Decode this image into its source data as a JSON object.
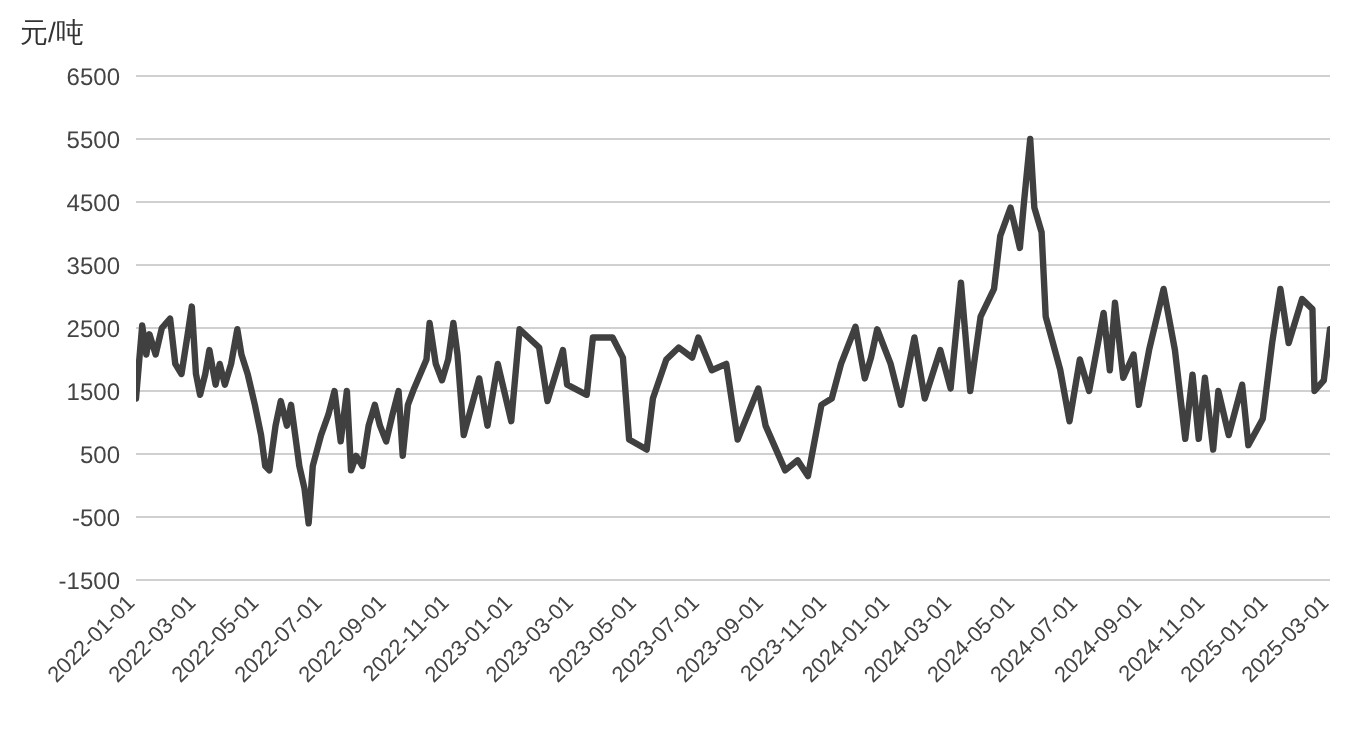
{
  "chart_data": {
    "type": "line",
    "ylabel": "元/吨",
    "x": [
      "2022-01-01",
      "2022-01-03",
      "2022-01-07",
      "2022-01-11",
      "2022-01-14",
      "2022-01-20",
      "2022-01-26",
      "2022-02-03",
      "2022-02-08",
      "2022-02-14",
      "2022-02-20",
      "2022-02-24",
      "2022-02-28",
      "2022-03-04",
      "2022-03-09",
      "2022-03-13",
      "2022-03-19",
      "2022-03-23",
      "2022-03-28",
      "2022-04-03",
      "2022-04-09",
      "2022-04-13",
      "2022-04-19",
      "2022-04-26",
      "2022-05-02",
      "2022-05-06",
      "2022-05-10",
      "2022-05-16",
      "2022-05-21",
      "2022-05-27",
      "2022-05-31",
      "2022-06-04",
      "2022-06-08",
      "2022-06-13",
      "2022-06-17",
      "2022-06-21",
      "2022-06-29",
      "2022-07-06",
      "2022-07-12",
      "2022-07-18",
      "2022-07-24",
      "2022-07-28",
      "2022-08-02",
      "2022-08-08",
      "2022-08-14",
      "2022-08-20",
      "2022-08-25",
      "2022-08-31",
      "2022-09-06",
      "2022-09-12",
      "2022-09-16",
      "2022-09-21",
      "2022-09-27",
      "2022-10-03",
      "2022-10-09",
      "2022-10-12",
      "2022-10-18",
      "2022-10-24",
      "2022-10-30",
      "2022-11-04",
      "2022-11-08",
      "2022-11-14",
      "2022-11-29",
      "2022-12-07",
      "2022-12-17",
      "2022-12-30",
      "2023-01-07",
      "2023-01-26",
      "2023-02-03",
      "2023-02-18",
      "2023-02-22",
      "2023-03-13",
      "2023-03-19",
      "2023-04-07",
      "2023-04-17",
      "2023-04-23",
      "2023-05-10",
      "2023-05-16",
      "2023-05-29",
      "2023-06-10",
      "2023-06-23",
      "2023-06-29",
      "2023-07-12",
      "2023-07-26",
      "2023-08-06",
      "2023-08-26",
      "2023-09-02",
      "2023-09-21",
      "2023-10-03",
      "2023-10-13",
      "2023-10-26",
      "2023-11-05",
      "2023-11-14",
      "2023-11-28",
      "2023-12-07",
      "2023-12-13",
      "2023-12-19",
      "2024-01-01",
      "2024-01-11",
      "2024-01-24",
      "2024-02-03",
      "2024-02-18",
      "2024-02-28",
      "2024-03-09",
      "2024-03-18",
      "2024-03-28",
      "2024-04-10",
      "2024-04-16",
      "2024-04-26",
      "2024-05-05",
      "2024-05-09",
      "2024-05-15",
      "2024-05-19",
      "2024-05-26",
      "2024-05-30",
      "2024-06-13",
      "2024-06-22",
      "2024-07-02",
      "2024-07-11",
      "2024-07-25",
      "2024-07-31",
      "2024-08-05",
      "2024-08-13",
      "2024-08-23",
      "2024-08-28",
      "2024-09-07",
      "2024-09-21",
      "2024-10-02",
      "2024-10-12",
      "2024-10-19",
      "2024-10-25",
      "2024-10-31",
      "2024-11-08",
      "2024-11-13",
      "2024-11-23",
      "2024-12-06",
      "2024-12-12",
      "2024-12-26",
      "2025-01-04",
      "2025-01-12",
      "2025-01-20",
      "2025-02-02",
      "2025-02-12",
      "2025-02-14",
      "2025-02-23",
      "2025-03-01"
    ],
    "series": [
      {
        "color": "#404040",
        "values": [
          1380,
          1770,
          2540,
          2080,
          2400,
          2080,
          2500,
          2650,
          1930,
          1770,
          2400,
          2840,
          1770,
          1440,
          1770,
          2150,
          1600,
          1930,
          1600,
          1930,
          2480,
          2080,
          1770,
          1280,
          800,
          310,
          240,
          950,
          1340,
          950,
          1280,
          800,
          310,
          -50,
          -600,
          310,
          800,
          1120,
          1500,
          700,
          1500,
          240,
          470,
          310,
          950,
          1280,
          950,
          700,
          1120,
          1500,
          470,
          1280,
          1540,
          1770,
          2000,
          2580,
          1930,
          1670,
          2000,
          2580,
          2080,
          800,
          1700,
          950,
          1930,
          1020,
          2480,
          2190,
          1340,
          2150,
          1600,
          1440,
          2350,
          2350,
          2030,
          730,
          570,
          1380,
          2000,
          2190,
          2030,
          2350,
          1830,
          1930,
          730,
          1540,
          950,
          240,
          400,
          150,
          1280,
          1380,
          1930,
          2520,
          1700,
          2030,
          2480,
          1930,
          1280,
          2350,
          1380,
          2150,
          1540,
          3220,
          1500,
          2680,
          3120,
          3960,
          4410,
          3770,
          4500,
          5500,
          4410,
          4020,
          2680,
          1840,
          1020,
          2000,
          1500,
          2740,
          1830,
          2900,
          1710,
          2080,
          1280,
          2150,
          3120,
          2150,
          740,
          1760,
          740,
          1710,
          570,
          1500,
          800,
          1600,
          640,
          1060,
          2260,
          3120,
          2260,
          2960,
          2800,
          1500,
          1670,
          2480
        ]
      }
    ],
    "xlim": [
      "2022-01-01",
      "2025-03-01"
    ],
    "xticks": [
      "2022-01-01",
      "2022-03-01",
      "2022-05-01",
      "2022-07-01",
      "2022-09-01",
      "2022-11-01",
      "2023-01-01",
      "2023-03-01",
      "2023-05-01",
      "2023-07-01",
      "2023-09-01",
      "2023-11-01",
      "2024-01-01",
      "2024-03-01",
      "2024-05-01",
      "2024-07-01",
      "2024-09-01",
      "2024-11-01",
      "2025-01-01",
      "2025-03-01"
    ],
    "ylim": [
      -1500,
      6500
    ],
    "yticks": [
      -1500,
      -500,
      500,
      1500,
      2500,
      3500,
      4500,
      5500,
      6500
    ],
    "grid": "y",
    "legend": false,
    "marker": "none",
    "line_style": "solid"
  }
}
